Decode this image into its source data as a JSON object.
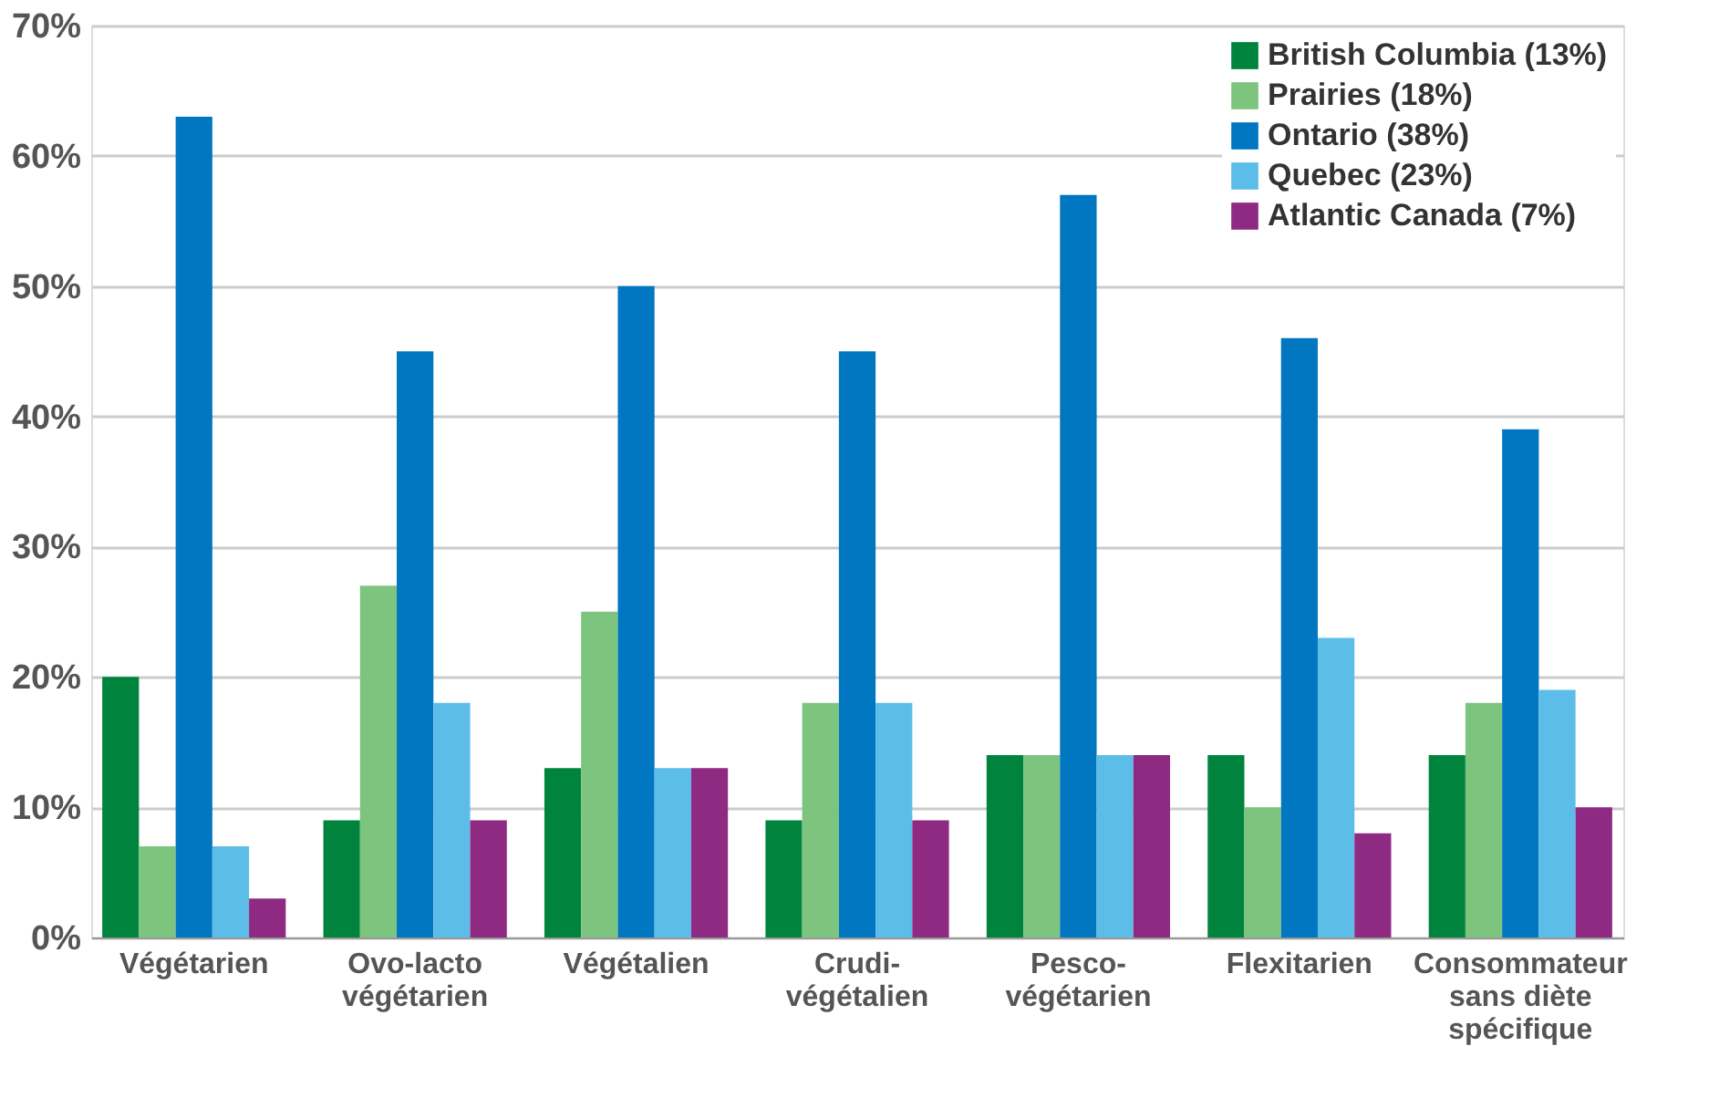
{
  "chart_data": {
    "type": "bar",
    "categories": [
      "Végétarien",
      "Ovo-lacto\nvégétarien",
      "Végétalien",
      "Crudi-\nvégétalien",
      "Pesco-\nvégétarien",
      "Flexitarien",
      "Consommateur\nsans diète\nspécifique"
    ],
    "series": [
      {
        "name": "British Columbia (13%)",
        "color": "#00843d",
        "values": [
          20,
          9,
          13,
          9,
          14,
          14,
          14
        ]
      },
      {
        "name": "Prairies (18%)",
        "color": "#7dc47f",
        "values": [
          7,
          27,
          25,
          18,
          14,
          10,
          18
        ]
      },
      {
        "name": "Ontario (38%)",
        "color": "#0077c0",
        "values": [
          63,
          45,
          50,
          45,
          57,
          46,
          39
        ]
      },
      {
        "name": "Quebec (23%)",
        "color": "#5bbde8",
        "values": [
          7,
          18,
          13,
          18,
          14,
          23,
          19
        ]
      },
      {
        "name": "Atlantic Canada (7%)",
        "color": "#8e2a82",
        "values": [
          3,
          9,
          13,
          9,
          14,
          8,
          10
        ]
      }
    ],
    "ylim": [
      0,
      70
    ],
    "yticks": [
      {
        "value": 0,
        "label": "0%"
      },
      {
        "value": 10,
        "label": "10%"
      },
      {
        "value": 20,
        "label": "20%"
      },
      {
        "value": 30,
        "label": "30%"
      },
      {
        "value": 40,
        "label": "40%"
      },
      {
        "value": 50,
        "label": "50%"
      },
      {
        "value": 60,
        "label": "60%"
      },
      {
        "value": 70,
        "label": "70%"
      }
    ],
    "grid": "y",
    "legend": "top right"
  }
}
